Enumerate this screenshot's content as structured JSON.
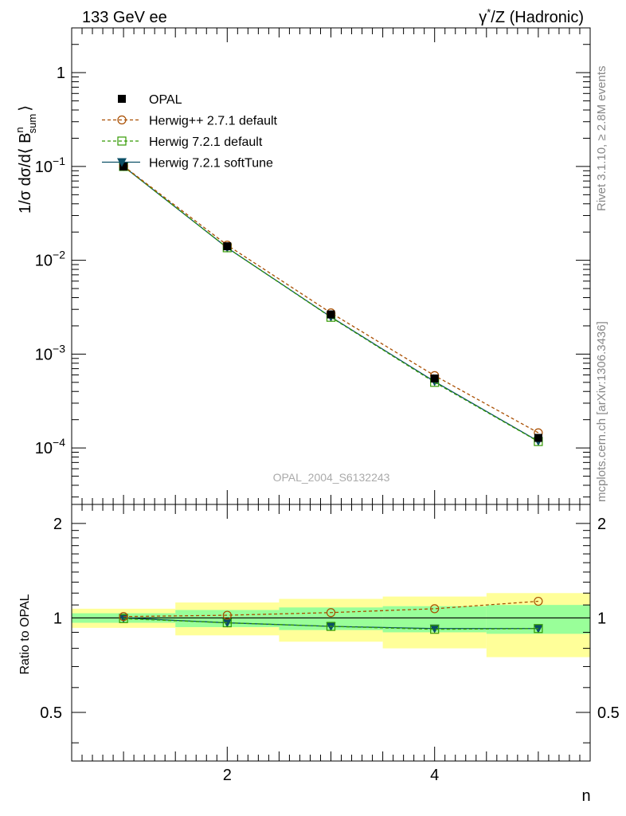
{
  "header": {
    "left": "133 GeV ee",
    "right_prefix": "γ",
    "right_sup": "*",
    "right_suffix": "/Z (Hadronic)"
  },
  "side_text": {
    "top": "Rivet 3.1.10, ≥ 2.8M events",
    "bottom": "mcplots.cern.ch [arXiv:1306.3436]"
  },
  "analysis_label": "OPAL_2004_S6132243",
  "chart_data": [
    {
      "type": "line",
      "panel": "main",
      "ylabel": "1/σ dσ/d⟨ B^n_sum ⟩",
      "ylabel_parts": {
        "pre": "1/σ dσ/d⟨ B",
        "sup": "n",
        "sub": "sum",
        "post": "⟩"
      },
      "yscale": "log",
      "xlim": [
        0.5,
        5.5
      ],
      "ylim": [
        2.5e-05,
        3.0
      ],
      "x": [
        1,
        2,
        3,
        4,
        5
      ],
      "yticks": [
        {
          "value": 1,
          "base": "1",
          "exp": ""
        },
        {
          "value": 0.1,
          "base": "10",
          "exp": "−1"
        },
        {
          "value": 0.01,
          "base": "10",
          "exp": "−2"
        },
        {
          "value": 0.001,
          "base": "10",
          "exp": "−3"
        },
        {
          "value": 0.0001,
          "base": "10",
          "exp": "−4"
        }
      ],
      "legend_position": "top-left",
      "series": [
        {
          "name": "OPAL",
          "style": "data",
          "color": "#000000",
          "marker": "filled-square",
          "values": [
            0.1,
            0.0141,
            0.00265,
            0.00055,
            0.000128
          ]
        },
        {
          "name": "Herwig++ 2.7.1 default",
          "style": "dashed",
          "color": "#a94e00",
          "marker": "open-circle",
          "values": [
            0.101,
            0.0145,
            0.00275,
            0.00059,
            0.000145
          ]
        },
        {
          "name": "Herwig 7.2.1 default",
          "style": "dashed",
          "color": "#339900",
          "marker": "open-square",
          "values": [
            0.1,
            0.0136,
            0.00247,
            0.0005,
            0.000117
          ]
        },
        {
          "name": "Herwig 7.2.1 softTune",
          "style": "solid",
          "color": "#0b4f66",
          "marker": "filled-triangle-down",
          "values": [
            0.1,
            0.0136,
            0.00249,
            0.00051,
            0.000118
          ]
        }
      ]
    },
    {
      "type": "line",
      "panel": "ratio",
      "ylabel": "Ratio to OPAL",
      "xlabel": "n",
      "xlim": [
        0.5,
        5.5
      ],
      "ylim": [
        0.35,
        2.3
      ],
      "xticks": [
        2,
        4
      ],
      "yticks": [
        {
          "value": 0.5,
          "label": "0.5"
        },
        {
          "value": 1,
          "label": "1"
        },
        {
          "value": 2,
          "label": "2"
        }
      ],
      "x": [
        1,
        2,
        3,
        4,
        5
      ],
      "bands": {
        "yellow": {
          "color": "#ffff99",
          "low": [
            0.93,
            0.88,
            0.84,
            0.8,
            0.75
          ],
          "high": [
            1.07,
            1.12,
            1.15,
            1.17,
            1.2
          ]
        },
        "green": {
          "color": "#99ff99",
          "low": [
            0.965,
            0.935,
            0.915,
            0.9,
            0.89
          ],
          "high": [
            1.035,
            1.06,
            1.08,
            1.09,
            1.1
          ]
        }
      },
      "series": [
        {
          "name": "Herwig++ 2.7.1 default",
          "values": [
            1.01,
            1.02,
            1.04,
            1.07,
            1.13
          ]
        },
        {
          "name": "Herwig 7.2.1 default",
          "values": [
            0.995,
            0.965,
            0.94,
            0.92,
            0.925
          ]
        },
        {
          "name": "Herwig 7.2.1 softTune",
          "values": [
            1.0,
            0.965,
            0.94,
            0.925,
            0.925
          ]
        }
      ]
    }
  ]
}
